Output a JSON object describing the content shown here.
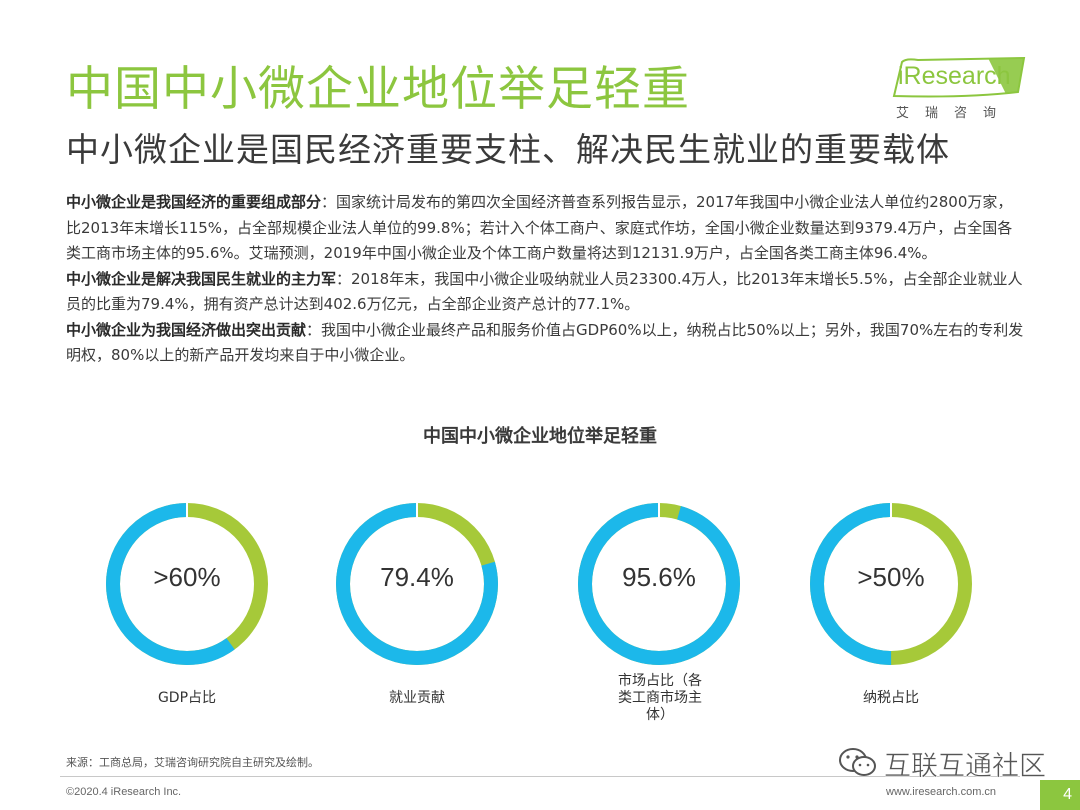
{
  "header": {
    "title": "中国中小微企业地位举足轻重",
    "subtitle": "中小微企业是国民经济重要支柱、解决民生就业的重要载体"
  },
  "logo": {
    "brand": "iResearch",
    "sub": "艾瑞咨询"
  },
  "body": {
    "p1_bold": "中小微企业是我国经济的重要组成部分",
    "p1_text": "：国家统计局发布的第四次全国经济普查系列报告显示，2017年我国中小微企业法人单位约2800万家，比2013年末增长115%，占全部规模企业法人单位的99.8%；若计入个体工商户、家庭式作坊，全国小微企业数量达到9379.4万户，占全国各类工商市场主体的95.6%。艾瑞预测，2019年中国小微企业及个体工商户数量将达到12131.9万户，占全国各类工商主体96.4%。",
    "p2_bold": "中小微企业是解决我国民生就业的主力军",
    "p2_text": "：2018年末，我国中小微企业吸纳就业人员23300.4万人，比2013年末增长5.5%，占全部企业就业人员的比重为79.4%，拥有资产总计达到402.6万亿元，占全部企业资产总计的77.1%。",
    "p3_bold": "中小微企业为我国经济做出突出贡献",
    "p3_text": "：我国中小微企业最终产品和服务价值占GDP60%以上，纳税占比50%以上；另外，我国70%左右的专利发明权，80%以上的新产品开发均来自于中小微企业。"
  },
  "chart_data": {
    "type": "pie",
    "title": "中国中小微企业地位举足轻重",
    "colors": {
      "blue": "#1cb8ea",
      "green": "#a6c939"
    },
    "series": [
      {
        "label": "GDP占比",
        "value_text": ">60%",
        "value": 60
      },
      {
        "label": "就业贡献",
        "value_text": "79.4%",
        "value": 79.4
      },
      {
        "label": "市场占比（各类工商市场主体）",
        "value_text": "95.6%",
        "value": 95.6
      },
      {
        "label": "纳税占比",
        "value_text": ">50%",
        "value": 50
      }
    ]
  },
  "footer": {
    "source": "来源：工商总局，艾瑞咨询研究院自主研究及绘制。",
    "copyright": "©2020.4 iResearch Inc.",
    "url": "www.iresearch.com.cn",
    "page": "4"
  },
  "watermark": {
    "text": "互联互通社区",
    "icon": "wechat-icon"
  }
}
